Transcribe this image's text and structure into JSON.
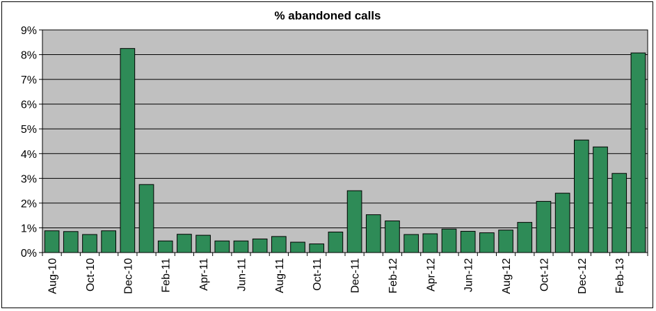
{
  "chart_data": {
    "type": "bar",
    "title": "% abandoned calls",
    "xlabel": "",
    "ylabel": "",
    "categories": [
      "Aug-10",
      "Sep-10",
      "Oct-10",
      "Nov-10",
      "Dec-10",
      "Jan-11",
      "Feb-11",
      "Mar-11",
      "Apr-11",
      "May-11",
      "Jun-11",
      "Jul-11",
      "Aug-11",
      "Sep-11",
      "Oct-11",
      "Nov-11",
      "Dec-11",
      "Jan-12",
      "Feb-12",
      "Mar-12",
      "Apr-12",
      "May-12",
      "Jun-12",
      "Jul-12",
      "Aug-12",
      "Sep-12",
      "Oct-12",
      "Nov-12",
      "Dec-12",
      "Jan-13",
      "Feb-13",
      "Mar-13"
    ],
    "tick_labels_shown": [
      "Aug-10",
      "Oct-10",
      "Dec-10",
      "Feb-11",
      "Apr-11",
      "Jun-11",
      "Aug-11",
      "Oct-11",
      "Dec-11",
      "Feb-12",
      "Apr-12",
      "Jun-12",
      "Aug-12",
      "Oct-12",
      "Dec-12",
      "Feb-13"
    ],
    "values": [
      0.88,
      0.85,
      0.73,
      0.88,
      8.25,
      2.75,
      0.47,
      0.74,
      0.7,
      0.47,
      0.47,
      0.55,
      0.65,
      0.42,
      0.35,
      0.83,
      2.5,
      1.53,
      1.28,
      0.73,
      0.76,
      0.95,
      0.86,
      0.8,
      0.91,
      1.22,
      2.07,
      2.4,
      4.55,
      4.27,
      3.2,
      8.07
    ],
    "units": "%",
    "ylim": [
      0,
      9
    ],
    "yticks": [
      "0%",
      "1%",
      "2%",
      "3%",
      "4%",
      "5%",
      "6%",
      "7%",
      "8%",
      "9%"
    ],
    "grid": true,
    "colors": {
      "bar": "#2e8b57",
      "bar_border": "#000000",
      "plot_bg": "#c0c0c0",
      "gridline": "#000000"
    }
  }
}
